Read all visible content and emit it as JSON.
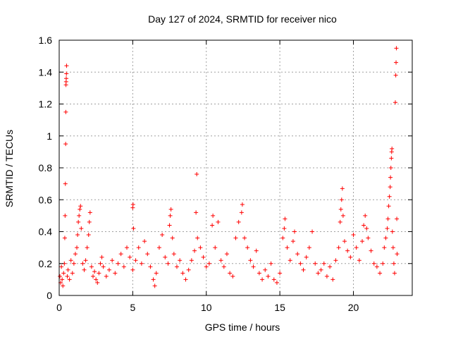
{
  "chart_data": {
    "type": "scatter",
    "title": "Day 127 of 2024, SRMTID for receiver nico",
    "xlabel": "GPS time / hours",
    "ylabel": "SRMTID / TECUs",
    "xlim": [
      0,
      24
    ],
    "ylim": [
      0,
      1.6
    ],
    "xticks": [
      0,
      5,
      10,
      15,
      20
    ],
    "xtick_labels": [
      "0",
      "5",
      "10",
      "15",
      "20"
    ],
    "yticks": [
      0,
      0.2,
      0.4,
      0.6,
      0.8,
      1,
      1.2,
      1.4,
      1.6
    ],
    "ytick_labels": [
      "0",
      "0.2",
      "0.4",
      "0.6",
      "0.8",
      "1",
      "1.2",
      "1.4",
      "1.6"
    ],
    "grid": true,
    "marker": "+",
    "series": [
      {
        "name": "SRMTID",
        "color": "#ff0000",
        "points": [
          [
            0.05,
            0.12
          ],
          [
            0.1,
            0.08
          ],
          [
            0.15,
            0.18
          ],
          [
            0.2,
            0.1
          ],
          [
            0.25,
            0.06
          ],
          [
            0.3,
            0.14
          ],
          [
            0.35,
            0.2
          ],
          [
            0.38,
            0.36
          ],
          [
            0.4,
            0.5
          ],
          [
            0.42,
            0.7
          ],
          [
            0.44,
            0.95
          ],
          [
            0.45,
            1.15
          ],
          [
            0.46,
            1.32
          ],
          [
            0.47,
            1.34
          ],
          [
            0.48,
            1.36
          ],
          [
            0.49,
            1.39
          ],
          [
            0.5,
            1.44
          ],
          [
            0.55,
            0.12
          ],
          [
            0.6,
            0.16
          ],
          [
            0.7,
            0.1
          ],
          [
            0.8,
            0.22
          ],
          [
            0.9,
            0.14
          ],
          [
            1.0,
            0.2
          ],
          [
            1.1,
            0.26
          ],
          [
            1.2,
            0.3
          ],
          [
            1.25,
            0.38
          ],
          [
            1.3,
            0.46
          ],
          [
            1.35,
            0.5
          ],
          [
            1.4,
            0.54
          ],
          [
            1.45,
            0.56
          ],
          [
            1.5,
            0.42
          ],
          [
            1.6,
            0.2
          ],
          [
            1.7,
            0.16
          ],
          [
            1.8,
            0.22
          ],
          [
            1.9,
            0.3
          ],
          [
            2.0,
            0.38
          ],
          [
            2.05,
            0.46
          ],
          [
            2.1,
            0.52
          ],
          [
            2.2,
            0.18
          ],
          [
            2.3,
            0.12
          ],
          [
            2.4,
            0.15
          ],
          [
            2.5,
            0.1
          ],
          [
            2.6,
            0.08
          ],
          [
            2.7,
            0.14
          ],
          [
            2.8,
            0.2
          ],
          [
            2.9,
            0.24
          ],
          [
            3.0,
            0.18
          ],
          [
            3.2,
            0.12
          ],
          [
            3.4,
            0.16
          ],
          [
            3.6,
            0.22
          ],
          [
            3.8,
            0.14
          ],
          [
            4.0,
            0.2
          ],
          [
            4.2,
            0.26
          ],
          [
            4.4,
            0.18
          ],
          [
            4.6,
            0.3
          ],
          [
            4.8,
            0.24
          ],
          [
            5.0,
            0.16
          ],
          [
            5.0,
            0.55
          ],
          [
            5.02,
            0.57
          ],
          [
            5.05,
            0.42
          ],
          [
            5.2,
            0.22
          ],
          [
            5.4,
            0.3
          ],
          [
            5.6,
            0.2
          ],
          [
            5.8,
            0.34
          ],
          [
            6.0,
            0.26
          ],
          [
            6.2,
            0.18
          ],
          [
            6.4,
            0.1
          ],
          [
            6.5,
            0.06
          ],
          [
            6.6,
            0.14
          ],
          [
            6.8,
            0.3
          ],
          [
            7.0,
            0.38
          ],
          [
            7.2,
            0.24
          ],
          [
            7.4,
            0.2
          ],
          [
            7.5,
            0.44
          ],
          [
            7.55,
            0.5
          ],
          [
            7.6,
            0.54
          ],
          [
            7.7,
            0.36
          ],
          [
            7.8,
            0.26
          ],
          [
            8.0,
            0.18
          ],
          [
            8.2,
            0.22
          ],
          [
            8.4,
            0.14
          ],
          [
            8.6,
            0.1
          ],
          [
            8.8,
            0.16
          ],
          [
            9.0,
            0.22
          ],
          [
            9.2,
            0.28
          ],
          [
            9.3,
            0.52
          ],
          [
            9.35,
            0.76
          ],
          [
            9.4,
            0.36
          ],
          [
            9.6,
            0.3
          ],
          [
            9.8,
            0.24
          ],
          [
            10.0,
            0.18
          ],
          [
            10.2,
            0.2
          ],
          [
            10.4,
            0.44
          ],
          [
            10.45,
            0.5
          ],
          [
            10.6,
            0.3
          ],
          [
            10.8,
            0.46
          ],
          [
            11.0,
            0.22
          ],
          [
            11.2,
            0.18
          ],
          [
            11.4,
            0.26
          ],
          [
            11.6,
            0.14
          ],
          [
            11.8,
            0.12
          ],
          [
            12.0,
            0.36
          ],
          [
            12.2,
            0.46
          ],
          [
            12.4,
            0.52
          ],
          [
            12.45,
            0.57
          ],
          [
            12.6,
            0.36
          ],
          [
            12.8,
            0.3
          ],
          [
            13.0,
            0.22
          ],
          [
            13.2,
            0.18
          ],
          [
            13.4,
            0.28
          ],
          [
            13.6,
            0.14
          ],
          [
            13.8,
            0.1
          ],
          [
            14.0,
            0.16
          ],
          [
            14.2,
            0.12
          ],
          [
            14.4,
            0.2
          ],
          [
            14.6,
            0.1
          ],
          [
            14.8,
            0.08
          ],
          [
            15.0,
            0.14
          ],
          [
            15.2,
            0.36
          ],
          [
            15.3,
            0.42
          ],
          [
            15.35,
            0.48
          ],
          [
            15.5,
            0.3
          ],
          [
            15.7,
            0.22
          ],
          [
            15.9,
            0.34
          ],
          [
            16.0,
            0.4
          ],
          [
            16.2,
            0.26
          ],
          [
            16.4,
            0.2
          ],
          [
            16.6,
            0.16
          ],
          [
            16.8,
            0.24
          ],
          [
            17.0,
            0.3
          ],
          [
            17.2,
            0.4
          ],
          [
            17.4,
            0.2
          ],
          [
            17.6,
            0.14
          ],
          [
            17.8,
            0.16
          ],
          [
            18.0,
            0.2
          ],
          [
            18.2,
            0.12
          ],
          [
            18.4,
            0.18
          ],
          [
            18.6,
            0.1
          ],
          [
            18.8,
            0.22
          ],
          [
            19.0,
            0.3
          ],
          [
            19.1,
            0.46
          ],
          [
            19.15,
            0.54
          ],
          [
            19.2,
            0.6
          ],
          [
            19.25,
            0.67
          ],
          [
            19.3,
            0.5
          ],
          [
            19.4,
            0.34
          ],
          [
            19.6,
            0.28
          ],
          [
            19.8,
            0.24
          ],
          [
            20.0,
            0.38
          ],
          [
            20.2,
            0.3
          ],
          [
            20.4,
            0.22
          ],
          [
            20.6,
            0.34
          ],
          [
            20.7,
            0.44
          ],
          [
            20.8,
            0.5
          ],
          [
            20.9,
            0.42
          ],
          [
            21.0,
            0.36
          ],
          [
            21.2,
            0.28
          ],
          [
            21.4,
            0.2
          ],
          [
            21.6,
            0.18
          ],
          [
            21.8,
            0.14
          ],
          [
            22.0,
            0.2
          ],
          [
            22.1,
            0.3
          ],
          [
            22.2,
            0.36
          ],
          [
            22.3,
            0.42
          ],
          [
            22.35,
            0.48
          ],
          [
            22.4,
            0.56
          ],
          [
            22.45,
            0.62
          ],
          [
            22.5,
            0.68
          ],
          [
            22.52,
            0.74
          ],
          [
            22.55,
            0.8
          ],
          [
            22.58,
            0.86
          ],
          [
            22.6,
            0.9
          ],
          [
            22.62,
            0.92
          ],
          [
            22.65,
            0.4
          ],
          [
            22.7,
            0.3
          ],
          [
            22.75,
            0.2
          ],
          [
            22.8,
            0.14
          ],
          [
            22.85,
            1.21
          ],
          [
            22.88,
            1.38
          ],
          [
            22.9,
            1.46
          ],
          [
            22.92,
            1.55
          ],
          [
            22.95,
            0.48
          ],
          [
            22.97,
            0.26
          ]
        ]
      }
    ]
  }
}
